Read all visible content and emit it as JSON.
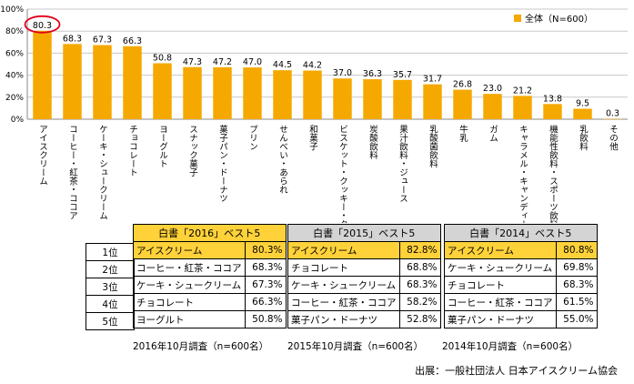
{
  "chart_data": {
    "type": "bar",
    "categories": [
      "アイスクリーム",
      "コーヒー・紅茶・ココア",
      "ケーキ・シュークリーム",
      "チョコレート",
      "ヨーグルト",
      "スナック菓子",
      "菓子パン・ドーナツ",
      "プリン",
      "せんべい・あられ",
      "和菓子",
      "ビスケット・クッキー・クラッカー",
      "炭酸飲料",
      "果汁飲料・ジュース",
      "乳酸菌飲料",
      "牛乳",
      "ガム",
      "キャラメル・キャンディー",
      "機能性飲料・スポーツ飲料",
      "乳飲料",
      "その他"
    ],
    "series": [
      {
        "name": "全体（N=600）",
        "values": [
          80.3,
          68.3,
          67.3,
          66.3,
          50.8,
          47.3,
          47.2,
          47.0,
          44.5,
          44.2,
          37.0,
          36.3,
          35.7,
          31.7,
          26.8,
          23.0,
          21.2,
          13.8,
          9.5,
          0.3
        ]
      }
    ],
    "value_labels": [
      "80.3",
      "68.3",
      "67.3",
      "66.3",
      "50.8",
      "47.3",
      "47.2",
      "47.0",
      "44.5",
      "44.2",
      "37.0",
      "36.3",
      "35.7",
      "31.7",
      "26.8",
      "23.0",
      "21.2",
      "13.8",
      "9.5",
      "0.3"
    ],
    "ylim": [
      0,
      100
    ],
    "yticks": [
      "0%",
      "20%",
      "40%",
      "60%",
      "80%",
      "100%"
    ],
    "legend": "top-right",
    "grid": true,
    "bar_color": "#f5a800",
    "highlight_color": "#e0001b"
  },
  "rank_labels": [
    "1位",
    "2位",
    "3位",
    "4位",
    "5位"
  ],
  "tables": [
    {
      "title": "白書「2016」ベスト5",
      "header_color": "#ffd23a",
      "rows": [
        {
          "name": "アイスクリーム",
          "pct": "80.3%"
        },
        {
          "name": "コーヒー・紅茶・ココア",
          "pct": "68.3%"
        },
        {
          "name": "ケーキ・シュークリーム",
          "pct": "67.3%"
        },
        {
          "name": "チョコレート",
          "pct": "66.3%"
        },
        {
          "name": "ヨーグルト",
          "pct": "50.8%"
        }
      ],
      "caption": "2016年10月調査（n=600名）"
    },
    {
      "title": "白書「2015」ベスト5",
      "header_color": "#d4d4d4",
      "rows": [
        {
          "name": "アイスクリーム",
          "pct": "82.8%"
        },
        {
          "name": "チョコレート",
          "pct": "68.8%"
        },
        {
          "name": "ケーキ・シュークリーム",
          "pct": "68.3%"
        },
        {
          "name": "コーヒー・紅茶・ココア",
          "pct": "58.2%"
        },
        {
          "name": "菓子パン・ドーナツ",
          "pct": "52.8%"
        }
      ],
      "caption": "2015年10月調査（n=600名）"
    },
    {
      "title": "白書「2014」ベスト5",
      "header_color": "#d4d4d4",
      "rows": [
        {
          "name": "アイスクリーム",
          "pct": "80.8%"
        },
        {
          "name": "ケーキ・シュークリーム",
          "pct": "69.8%"
        },
        {
          "name": "チョコレート",
          "pct": "68.3%"
        },
        {
          "name": "コーヒー・紅茶・ココア",
          "pct": "61.5%"
        },
        {
          "name": "菓子パン・ドーナツ",
          "pct": "55.0%"
        }
      ],
      "caption": "2014年10月調査（n=600名）"
    }
  ],
  "source": "出展：一般社団法人 日本アイスクリーム協会"
}
